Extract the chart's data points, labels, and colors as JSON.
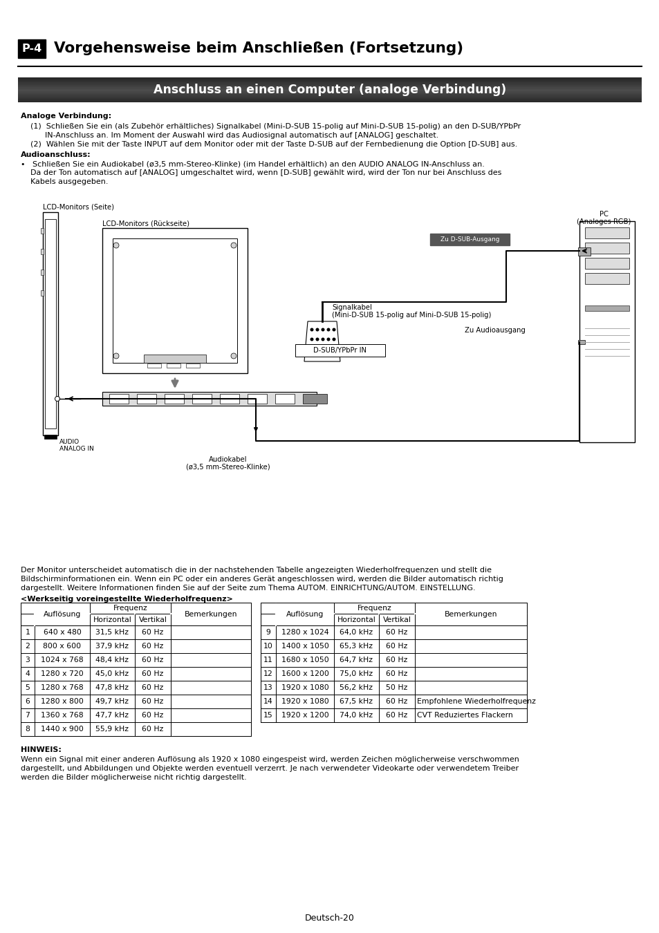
{
  "page_bg": "#ffffff",
  "header_box_color": "#000000",
  "header_box_text": "P-4",
  "header_title": "Vorgehensweise beim Anschließen (Fortsetzung)",
  "section_bar_dark": "#2a2a2a",
  "section_bar_mid": "#555555",
  "section_title": "Anschluss an einen Computer (analoge Verbindung)",
  "section_title_color": "#ffffff",
  "analoge_verbindung_label": "Analoge Verbindung:",
  "analoge_verbindung_1": "(1)  Schließen Sie ein (als Zubehör erhältliches) Signalkabel (Mini-D-SUB 15-polig auf Mini-D-SUB 15-polig) an den D-SUB/YPbPr",
  "analoge_verbindung_1b": "      IN-Anschluss an. Im Moment der Auswahl wird das Audiosignal automatisch auf [ANALOG] geschaltet.",
  "analoge_verbindung_2": "(2)  Wählen Sie mit der Taste INPUT auf dem Monitor oder mit der Taste D-SUB auf der Fernbedienung die Option [D-SUB] aus.",
  "audioanschluss_label": "Audioanschluss:",
  "audioanschluss_bullet": "•   Schließen Sie ein Audiokabel (ø3,5 mm-Stereo-Klinke) (im Handel erhältlich) an den AUDIO ANALOG IN-Anschluss an.",
  "audioanschluss_2": "    Da der Ton automatisch auf [ANALOG] umgeschaltet wird, wenn [D-SUB] gewählt wird, wird der Ton nur bei Anschluss des",
  "audioanschluss_3": "    Kabels ausgegeben.",
  "lcd_side_label": "LCD-Monitors (Seite)",
  "lcd_back_label": "LCD-Monitors (Rückseite)",
  "pc_label_1": "PC",
  "pc_label_2": "(Analoges RGB)",
  "zu_dsub_label": "Zu D-SUB-Ausgang",
  "signalkabel_label1": "Signalkabel",
  "signalkabel_label2": "(Mini-D-SUB 15-polig auf Mini-D-SUB 15-polig)",
  "zu_audio_label": "Zu Audioausgang",
  "dsub_label": "D-SUB/YPbPr IN",
  "audio_in_label1": "AUDIO",
  "audio_in_label2": "ANALOG IN",
  "audiokabel_label1": "Audiokabel",
  "audiokabel_label2": "(ø3,5 mm-Stereo-Klinke)",
  "paragraph_text1": "Der Monitor unterscheidet automatisch die in der nachstehenden Tabelle angezeigten Wiederholfrequenzen und stellt die",
  "paragraph_text2": "Bildschirminformationen ein. Wenn ein PC oder ein anderes Gerät angeschlossen wird, werden die Bilder automatisch richtig",
  "paragraph_text3": "dargestellt. Weitere Informationen finden Sie auf der Seite zum Thema AUTOM. EINRICHTUNG/AUTOM. EINSTELLUNG.",
  "table_title": "<Werkseitig voreingestellte Wiederholfrequenz>",
  "table_data_left": [
    [
      "1",
      "640 x 480",
      "31,5 kHz",
      "60 Hz",
      ""
    ],
    [
      "2",
      "800 x 600",
      "37,9 kHz",
      "60 Hz",
      ""
    ],
    [
      "3",
      "1024 x 768",
      "48,4 kHz",
      "60 Hz",
      ""
    ],
    [
      "4",
      "1280 x 720",
      "45,0 kHz",
      "60 Hz",
      ""
    ],
    [
      "5",
      "1280 x 768",
      "47,8 kHz",
      "60 Hz",
      ""
    ],
    [
      "6",
      "1280 x 800",
      "49,7 kHz",
      "60 Hz",
      ""
    ],
    [
      "7",
      "1360 x 768",
      "47,7 kHz",
      "60 Hz",
      ""
    ],
    [
      "8",
      "1440 x 900",
      "55,9 kHz",
      "60 Hz",
      ""
    ]
  ],
  "table_data_right": [
    [
      "9",
      "1280 x 1024",
      "64,0 kHz",
      "60 Hz",
      ""
    ],
    [
      "10",
      "1400 x 1050",
      "65,3 kHz",
      "60 Hz",
      ""
    ],
    [
      "11",
      "1680 x 1050",
      "64,7 kHz",
      "60 Hz",
      ""
    ],
    [
      "12",
      "1600 x 1200",
      "75,0 kHz",
      "60 Hz",
      ""
    ],
    [
      "13",
      "1920 x 1080",
      "56,2 kHz",
      "50 Hz",
      ""
    ],
    [
      "14",
      "1920 x 1080",
      "67,5 kHz",
      "60 Hz",
      "Empfohlene Wiederholfrequenz"
    ],
    [
      "15",
      "1920 x 1200",
      "74,0 kHz",
      "60 Hz",
      "CVT Reduziertes Flackern"
    ]
  ],
  "hinweis_label": "HINWEIS:",
  "hinweis_1": "Wenn ein Signal mit einer anderen Auflösung als 1920 x 1080 eingespeist wird, werden Zeichen möglicherweise verschwommen",
  "hinweis_2": "dargestellt, und Abbildungen und Objekte werden eventuell verzerrt. Je nach verwendeter Videokarte oder verwendetem Treiber",
  "hinweis_3": "werden die Bilder möglicherweise nicht richtig dargestellt.",
  "footer_text": "Deutsch-20"
}
